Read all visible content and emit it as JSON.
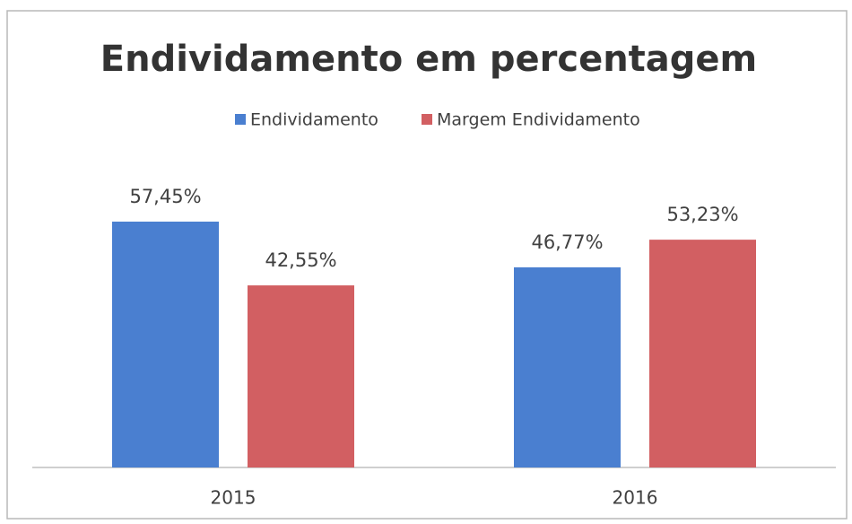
{
  "chart_data": {
    "type": "bar",
    "title": "Endividamento em percentagem",
    "categories": [
      "2015",
      "2016"
    ],
    "series": [
      {
        "name": "Endividamento",
        "color": "#4a7fd0",
        "values": [
          57.45,
          46.77
        ],
        "value_labels": [
          "57,45%",
          "46,77%"
        ]
      },
      {
        "name": "Margem Endividamento",
        "color": "#d25f62",
        "values": [
          42.55,
          53.23
        ],
        "value_labels": [
          "42,55%",
          "53,23%"
        ]
      }
    ],
    "legend": "top"
  }
}
